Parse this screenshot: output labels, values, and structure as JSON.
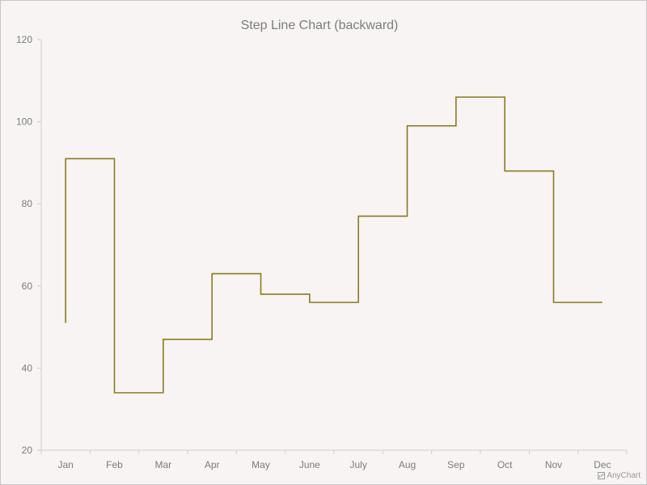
{
  "chart_data": {
    "type": "line",
    "step_direction": "backward",
    "title": "Step Line Chart (backward)",
    "categories": [
      "Jan",
      "Feb",
      "Mar",
      "Apr",
      "May",
      "June",
      "July",
      "Aug",
      "Sep",
      "Oct",
      "Nov",
      "Dec"
    ],
    "series": [
      {
        "values": [
          51,
          91,
          34,
          47,
          63,
          58,
          56,
          77,
          99,
          106,
          88,
          56
        ],
        "color": "#8a7a1f"
      }
    ],
    "ylim": [
      20,
      120
    ],
    "yticks": [
      20,
      40,
      60,
      80,
      100,
      120
    ],
    "xlabel": "",
    "ylabel": "",
    "grid": false,
    "legend": "none"
  },
  "credits": {
    "label": "AnyChart"
  }
}
